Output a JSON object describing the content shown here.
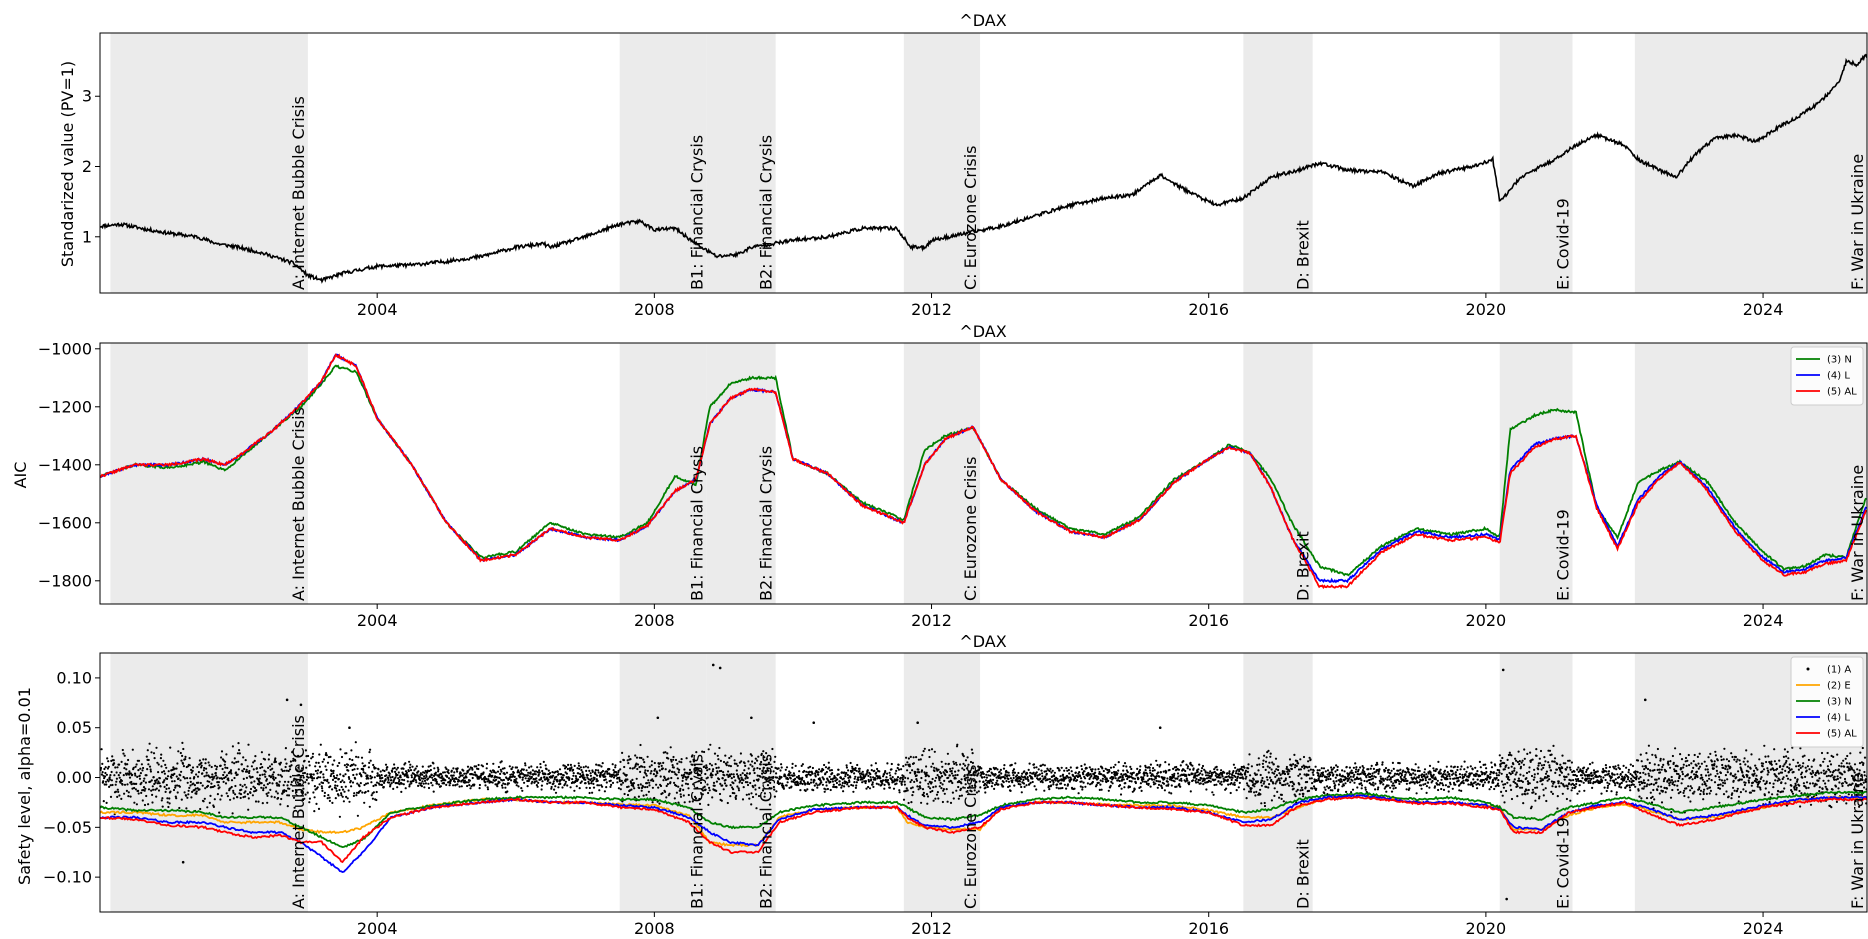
{
  "figure": {
    "x_ticks": [
      2004,
      2008,
      2012,
      2016,
      2020,
      2024
    ],
    "x_range": [
      2000.0,
      2025.5
    ],
    "crisis_periods": [
      {
        "label": "A: Internet Bubble Crisis",
        "start": 2000.15,
        "end": 2003.0
      },
      {
        "label": "B1: Financial Crysis",
        "start": 2007.5,
        "end": 2008.75
      },
      {
        "label": "B2: Financial Crysis",
        "start": 2008.75,
        "end": 2009.75
      },
      {
        "label": "C: Eurozone Crisis",
        "start": 2011.6,
        "end": 2012.7
      },
      {
        "label": "D: Brexit",
        "start": 2016.5,
        "end": 2017.5
      },
      {
        "label": "E: Covid-19",
        "start": 2020.2,
        "end": 2021.25
      },
      {
        "label": "F: War in Ukraine",
        "start": 2022.15,
        "end": 2025.5
      }
    ],
    "colors": {
      "shade": "#ebebeb",
      "A": "#000000",
      "E": "#ffa500",
      "N": "#008000",
      "L": "#0000ff",
      "AL": "#ff0000"
    }
  },
  "chart_data": [
    {
      "type": "line",
      "title": "^DAX",
      "ylabel": "Standarized value (PV=1)",
      "ylim": [
        0.2,
        3.9
      ],
      "yticks": [
        1,
        2,
        3
      ],
      "series": [
        {
          "color": "#000000",
          "x": [
            2000.0,
            2000.3,
            2000.7,
            2001.0,
            2001.4,
            2001.7,
            2002.0,
            2002.3,
            2002.5,
            2002.8,
            2003.0,
            2003.2,
            2003.5,
            2004.0,
            2004.5,
            2005.0,
            2005.5,
            2006.0,
            2006.4,
            2006.5,
            2007.0,
            2007.5,
            2007.8,
            2008.0,
            2008.3,
            2008.6,
            2008.9,
            2009.2,
            2009.4,
            2009.7,
            2010.0,
            2010.5,
            2011.0,
            2011.5,
            2011.7,
            2011.9,
            2012.0,
            2012.5,
            2013.0,
            2013.5,
            2014.0,
            2014.5,
            2014.9,
            2015.3,
            2015.6,
            2015.9,
            2016.1,
            2016.5,
            2016.9,
            2017.3,
            2017.6,
            2018.0,
            2018.5,
            2018.95,
            2019.3,
            2019.8,
            2020.1,
            2020.2,
            2020.3,
            2020.5,
            2020.9,
            2021.3,
            2021.6,
            2022.0,
            2022.2,
            2022.5,
            2022.75,
            2023.0,
            2023.3,
            2023.6,
            2023.9,
            2024.2,
            2024.5,
            2024.8,
            2025.1,
            2025.2,
            2025.35,
            2025.5
          ],
          "y": [
            1.15,
            1.18,
            1.1,
            1.05,
            1.0,
            0.9,
            0.85,
            0.78,
            0.72,
            0.62,
            0.45,
            0.38,
            0.48,
            0.58,
            0.6,
            0.65,
            0.72,
            0.85,
            0.9,
            0.85,
            1.0,
            1.18,
            1.22,
            1.1,
            1.12,
            0.9,
            0.72,
            0.75,
            0.85,
            0.9,
            0.95,
            1.0,
            1.12,
            1.12,
            0.85,
            0.85,
            0.95,
            1.05,
            1.15,
            1.3,
            1.45,
            1.55,
            1.6,
            1.88,
            1.7,
            1.55,
            1.45,
            1.55,
            1.85,
            1.95,
            2.05,
            1.95,
            1.92,
            1.72,
            1.9,
            2.0,
            2.1,
            1.5,
            1.6,
            1.85,
            2.05,
            2.3,
            2.45,
            2.3,
            2.1,
            1.95,
            1.85,
            2.15,
            2.4,
            2.45,
            2.35,
            2.55,
            2.7,
            2.9,
            3.2,
            3.5,
            3.45,
            3.6
          ]
        }
      ]
    },
    {
      "type": "line",
      "title": "^DAX",
      "ylabel": "AIC",
      "ylim": [
        -1880,
        -980
      ],
      "yticks": [
        -1800,
        -1600,
        -1400,
        -1200,
        -1000
      ],
      "legend": {
        "position": "upper right",
        "entries": [
          "(3) N",
          "(4) L",
          "(5) AL"
        ]
      },
      "x": [
        2000.0,
        2000.5,
        2001.0,
        2001.5,
        2001.8,
        2002.0,
        2002.5,
        2002.9,
        2003.2,
        2003.4,
        2003.7,
        2004.0,
        2004.5,
        2005.0,
        2005.5,
        2006.0,
        2006.5,
        2007.0,
        2007.5,
        2007.9,
        2008.3,
        2008.6,
        2008.8,
        2009.1,
        2009.4,
        2009.75,
        2010.0,
        2010.5,
        2011.0,
        2011.6,
        2011.9,
        2012.2,
        2012.6,
        2013.0,
        2013.5,
        2014.0,
        2014.5,
        2015.0,
        2015.5,
        2016.0,
        2016.3,
        2016.6,
        2016.9,
        2017.2,
        2017.6,
        2018.0,
        2018.5,
        2019.0,
        2019.5,
        2020.0,
        2020.2,
        2020.35,
        2020.7,
        2021.0,
        2021.3,
        2021.6,
        2021.9,
        2022.2,
        2022.5,
        2022.8,
        2023.2,
        2023.6,
        2024.0,
        2024.3,
        2024.6,
        2024.9,
        2025.2,
        2025.5
      ],
      "series": [
        {
          "name": "(3) N",
          "color": "#008000",
          "y": [
            -1440,
            -1400,
            -1410,
            -1390,
            -1420,
            -1380,
            -1280,
            -1200,
            -1120,
            -1060,
            -1080,
            -1240,
            -1400,
            -1600,
            -1720,
            -1700,
            -1600,
            -1640,
            -1650,
            -1600,
            -1440,
            -1470,
            -1200,
            -1120,
            -1100,
            -1100,
            -1380,
            -1430,
            -1530,
            -1590,
            -1350,
            -1300,
            -1270,
            -1450,
            -1550,
            -1620,
            -1640,
            -1580,
            -1450,
            -1380,
            -1330,
            -1360,
            -1450,
            -1600,
            -1750,
            -1780,
            -1680,
            -1620,
            -1640,
            -1620,
            -1650,
            -1280,
            -1230,
            -1210,
            -1220,
            -1550,
            -1650,
            -1460,
            -1420,
            -1390,
            -1460,
            -1600,
            -1700,
            -1760,
            -1750,
            -1710,
            -1720,
            -1500
          ]
        },
        {
          "name": "(4) L",
          "color": "#0000ff",
          "y": [
            -1440,
            -1400,
            -1400,
            -1380,
            -1400,
            -1370,
            -1280,
            -1190,
            -1110,
            -1020,
            -1060,
            -1240,
            -1400,
            -1600,
            -1730,
            -1710,
            -1620,
            -1650,
            -1660,
            -1610,
            -1490,
            -1450,
            -1260,
            -1170,
            -1140,
            -1150,
            -1380,
            -1430,
            -1540,
            -1600,
            -1400,
            -1310,
            -1270,
            -1450,
            -1560,
            -1630,
            -1650,
            -1590,
            -1460,
            -1380,
            -1340,
            -1360,
            -1480,
            -1650,
            -1800,
            -1800,
            -1690,
            -1630,
            -1650,
            -1640,
            -1660,
            -1420,
            -1330,
            -1310,
            -1300,
            -1540,
            -1680,
            -1520,
            -1440,
            -1390,
            -1480,
            -1620,
            -1720,
            -1770,
            -1760,
            -1730,
            -1720,
            -1540
          ]
        },
        {
          "name": "(5) AL",
          "color": "#ff0000",
          "y": [
            -1440,
            -1400,
            -1400,
            -1380,
            -1400,
            -1370,
            -1280,
            -1190,
            -1110,
            -1020,
            -1060,
            -1240,
            -1400,
            -1600,
            -1730,
            -1710,
            -1620,
            -1650,
            -1660,
            -1610,
            -1490,
            -1450,
            -1260,
            -1170,
            -1140,
            -1150,
            -1380,
            -1430,
            -1540,
            -1600,
            -1400,
            -1310,
            -1270,
            -1450,
            -1560,
            -1630,
            -1650,
            -1590,
            -1460,
            -1380,
            -1340,
            -1360,
            -1480,
            -1650,
            -1820,
            -1820,
            -1700,
            -1640,
            -1660,
            -1650,
            -1670,
            -1430,
            -1340,
            -1310,
            -1300,
            -1550,
            -1690,
            -1530,
            -1450,
            -1390,
            -1490,
            -1630,
            -1730,
            -1780,
            -1770,
            -1740,
            -1730,
            -1550
          ]
        }
      ]
    },
    {
      "type": "scatter",
      "title": "^DAX",
      "ylabel": "Safety level, alpha=0.01",
      "ylim": [
        -0.135,
        0.125
      ],
      "yticks": [
        -0.1,
        -0.05,
        0.0,
        0.05,
        0.1
      ],
      "legend": {
        "position": "upper right",
        "entries": [
          "(1) A",
          "(2) E",
          "(3) N",
          "(4) L",
          "(5) AL"
        ]
      },
      "points_A": {
        "name": "(1) A",
        "description_of_cloud": "daily safety-level estimates scattered around 0.00, wider during crises",
        "highlight_points": [
          [
            2002.7,
            0.078
          ],
          [
            2002.9,
            0.073
          ],
          [
            2008.85,
            0.113
          ],
          [
            2008.95,
            0.11
          ],
          [
            2009.4,
            0.06
          ],
          [
            2020.25,
            0.108
          ],
          [
            2020.3,
            -0.122
          ],
          [
            2008.05,
            0.06
          ],
          [
            2011.8,
            0.055
          ],
          [
            2022.3,
            0.078
          ],
          [
            2003.6,
            0.05
          ],
          [
            2001.2,
            -0.085
          ],
          [
            2010.3,
            0.055
          ],
          [
            2015.3,
            0.05
          ]
        ]
      },
      "x": [
        2000.0,
        2000.5,
        2001.0,
        2001.5,
        2001.8,
        2002.2,
        2002.6,
        2002.9,
        2003.2,
        2003.5,
        2003.8,
        2004.2,
        2004.8,
        2005.5,
        2006.0,
        2006.5,
        2007.0,
        2007.5,
        2008.0,
        2008.5,
        2008.8,
        2009.1,
        2009.5,
        2009.8,
        2010.3,
        2011.0,
        2011.5,
        2011.65,
        2011.9,
        2012.3,
        2012.7,
        2013.0,
        2013.5,
        2014.0,
        2014.5,
        2015.0,
        2015.5,
        2016.0,
        2016.5,
        2016.9,
        2017.3,
        2017.7,
        2018.2,
        2019.0,
        2019.5,
        2020.0,
        2020.2,
        2020.4,
        2020.8,
        2021.2,
        2021.6,
        2022.0,
        2022.3,
        2022.8,
        2023.3,
        2024.0,
        2024.5,
        2025.0,
        2025.5
      ],
      "series": [
        {
          "name": "(2) E",
          "color": "#ffa500",
          "y": [
            -0.035,
            -0.035,
            -0.038,
            -0.038,
            -0.045,
            -0.045,
            -0.045,
            -0.052,
            -0.055,
            -0.055,
            -0.05,
            -0.035,
            -0.028,
            -0.022,
            -0.022,
            -0.025,
            -0.025,
            -0.027,
            -0.028,
            -0.038,
            -0.065,
            -0.068,
            -0.068,
            -0.04,
            -0.032,
            -0.03,
            -0.03,
            -0.045,
            -0.05,
            -0.052,
            -0.052,
            -0.03,
            -0.025,
            -0.025,
            -0.027,
            -0.028,
            -0.028,
            -0.033,
            -0.04,
            -0.04,
            -0.03,
            -0.02,
            -0.018,
            -0.025,
            -0.025,
            -0.028,
            -0.03,
            -0.052,
            -0.052,
            -0.038,
            -0.03,
            -0.027,
            -0.032,
            -0.042,
            -0.04,
            -0.03,
            -0.022,
            -0.02,
            -0.02
          ]
        },
        {
          "name": "(3) N",
          "color": "#008000",
          "y": [
            -0.03,
            -0.033,
            -0.033,
            -0.035,
            -0.04,
            -0.04,
            -0.04,
            -0.05,
            -0.06,
            -0.07,
            -0.062,
            -0.035,
            -0.028,
            -0.022,
            -0.02,
            -0.02,
            -0.02,
            -0.022,
            -0.022,
            -0.03,
            -0.045,
            -0.05,
            -0.05,
            -0.035,
            -0.028,
            -0.025,
            -0.025,
            -0.03,
            -0.04,
            -0.042,
            -0.038,
            -0.028,
            -0.022,
            -0.02,
            -0.022,
            -0.025,
            -0.025,
            -0.028,
            -0.035,
            -0.032,
            -0.022,
            -0.018,
            -0.016,
            -0.022,
            -0.02,
            -0.025,
            -0.03,
            -0.04,
            -0.042,
            -0.03,
            -0.025,
            -0.02,
            -0.025,
            -0.035,
            -0.03,
            -0.022,
            -0.018,
            -0.015,
            -0.015
          ]
        },
        {
          "name": "(4) L",
          "color": "#0000ff",
          "y": [
            -0.04,
            -0.04,
            -0.045,
            -0.045,
            -0.05,
            -0.055,
            -0.055,
            -0.065,
            -0.08,
            -0.095,
            -0.075,
            -0.04,
            -0.03,
            -0.025,
            -0.022,
            -0.025,
            -0.025,
            -0.028,
            -0.03,
            -0.04,
            -0.055,
            -0.065,
            -0.068,
            -0.042,
            -0.032,
            -0.03,
            -0.03,
            -0.038,
            -0.048,
            -0.05,
            -0.045,
            -0.03,
            -0.025,
            -0.025,
            -0.028,
            -0.03,
            -0.03,
            -0.035,
            -0.045,
            -0.042,
            -0.025,
            -0.02,
            -0.018,
            -0.025,
            -0.025,
            -0.028,
            -0.032,
            -0.05,
            -0.052,
            -0.035,
            -0.028,
            -0.025,
            -0.03,
            -0.042,
            -0.038,
            -0.028,
            -0.022,
            -0.02,
            -0.02
          ]
        },
        {
          "name": "(5) AL",
          "color": "#ff0000",
          "y": [
            -0.04,
            -0.042,
            -0.048,
            -0.05,
            -0.055,
            -0.06,
            -0.058,
            -0.065,
            -0.065,
            -0.085,
            -0.06,
            -0.04,
            -0.03,
            -0.025,
            -0.022,
            -0.025,
            -0.025,
            -0.03,
            -0.032,
            -0.045,
            -0.065,
            -0.075,
            -0.075,
            -0.045,
            -0.035,
            -0.03,
            -0.03,
            -0.04,
            -0.05,
            -0.055,
            -0.05,
            -0.032,
            -0.025,
            -0.025,
            -0.028,
            -0.03,
            -0.032,
            -0.035,
            -0.048,
            -0.048,
            -0.028,
            -0.022,
            -0.02,
            -0.026,
            -0.026,
            -0.03,
            -0.032,
            -0.055,
            -0.055,
            -0.035,
            -0.03,
            -0.025,
            -0.035,
            -0.048,
            -0.042,
            -0.03,
            -0.025,
            -0.022,
            -0.022
          ]
        }
      ]
    }
  ]
}
